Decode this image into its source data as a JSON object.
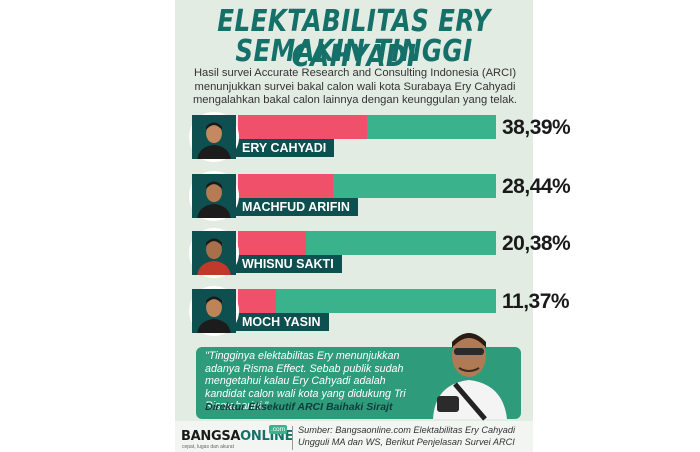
{
  "title_line1": "ELEKTABILITAS ERY CAHYADI",
  "title_line2": "SEMAKIN TINGGI",
  "subtitle": "Hasil survei Accurate Research and Consulting Indonesia (ARCI) menunjukkan survei bakal calon wali kota Surabaya Ery Cahyadi mengalahkan bakal calon lainnya dengan keunggulan yang telak.",
  "chart_data": {
    "type": "bar",
    "orientation": "horizontal",
    "categories": [
      "ERY CAHYADI",
      "MACHFUD ARIFIN",
      "WHISNU SAKTI",
      "MOCH YASIN"
    ],
    "values": [
      38.39,
      28.44,
      20.38,
      11.37
    ],
    "value_labels": [
      "38,39%",
      "28,44%",
      "20,38%",
      "11,37%"
    ],
    "unit": "%",
    "xlim": [
      0,
      100
    ],
    "colors": {
      "fill": "#f0506a",
      "track": "#3ab28c",
      "name_tag": "#0e4f4f",
      "title": "#15706a"
    }
  },
  "quote": {
    "text": "\"Tingginya elektabilitas Ery menunjukkan adanya Risma Effect. Sebab publik sudah mengetahui kalau Ery Cahyadi adalah kandidat calon wali kota yang didukung Tri Rismaharini.\"",
    "author": "Direktur Eksekutif ARCI Baihaki Sirajt"
  },
  "footer": {
    "logo_part1": "BANGSA",
    "logo_part2": "ONLINE",
    "logo_suffix": ".com",
    "logo_tagline": "cepat, lugas dan akurat",
    "source": "Sumber: Bangsaonline.com Elektabilitas Ery Cahyadi Ungguli MA dan WS, Berikut Penjelasan Survei ARCI"
  }
}
